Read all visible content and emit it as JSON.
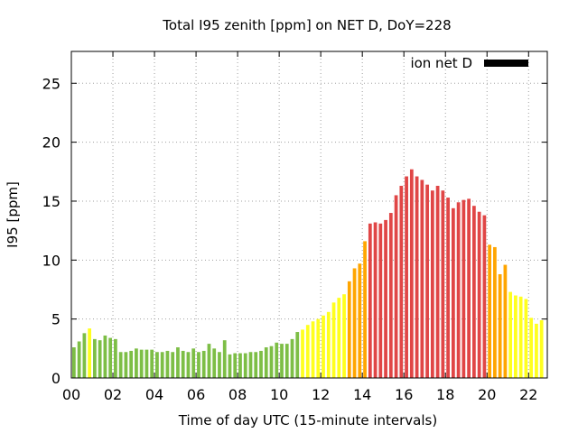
{
  "chart_data": {
    "type": "bar",
    "title": "Total I95 zenith [ppm] on NET D, DoY=228",
    "xlabel": "Time of day UTC (15-minute intervals)",
    "ylabel": "I95 [ppm]",
    "x_tick_labels": [
      "00",
      "02",
      "04",
      "06",
      "08",
      "10",
      "12",
      "14",
      "16",
      "18",
      "20",
      "22"
    ],
    "x_tick_hours": [
      0,
      2,
      4,
      6,
      8,
      10,
      12,
      14,
      16,
      18,
      20,
      22
    ],
    "y_ticks": [
      0,
      5,
      10,
      15,
      20,
      25
    ],
    "xlim_hours": [
      0,
      22.9
    ],
    "ylim": [
      0,
      27.7
    ],
    "grid": true,
    "legend": {
      "label": "ion net D",
      "color": "#000000",
      "placement": "top-right"
    },
    "interval_hours": 0.25,
    "level_colors": {
      "green": "#7dbe46",
      "yellow": "#ffff1e",
      "orange": "#ffa500",
      "red": "#e04646"
    },
    "series": [
      {
        "values": [
          2.6,
          3.1,
          3.8,
          4.2,
          3.3,
          3.2,
          3.6,
          3.4,
          3.3,
          2.2,
          2.2,
          2.3,
          2.5,
          2.4,
          2.4,
          2.4,
          2.2,
          2.2,
          2.3,
          2.2,
          2.6,
          2.3,
          2.2,
          2.5,
          2.2,
          2.3,
          2.9,
          2.5,
          2.2,
          3.2,
          2.0,
          2.1,
          2.1,
          2.1,
          2.2,
          2.2,
          2.3,
          2.6,
          2.7,
          3.0,
          2.9,
          2.9,
          3.3,
          3.9,
          4.1,
          4.5,
          4.8,
          5.0,
          5.3,
          5.6,
          6.4,
          6.8,
          7.1,
          8.2,
          9.3,
          9.7,
          11.6,
          13.1,
          13.2,
          13.1,
          13.4,
          14.0,
          15.5,
          16.3,
          17.1,
          17.7,
          17.1,
          16.8,
          16.4,
          15.9,
          16.3,
          15.9,
          15.3,
          14.4,
          14.9,
          15.1,
          15.2,
          14.6,
          14.1,
          13.8,
          11.3,
          11.1,
          8.8,
          9.6,
          7.3,
          7.0,
          6.9,
          6.7,
          5.1,
          4.6,
          4.9
        ],
        "levels": [
          "green",
          "green",
          "green",
          "yellow",
          "green",
          "green",
          "green",
          "green",
          "green",
          "green",
          "green",
          "green",
          "green",
          "green",
          "green",
          "green",
          "green",
          "green",
          "green",
          "green",
          "green",
          "green",
          "green",
          "green",
          "green",
          "green",
          "green",
          "green",
          "green",
          "green",
          "green",
          "green",
          "green",
          "green",
          "green",
          "green",
          "green",
          "green",
          "green",
          "green",
          "green",
          "green",
          "green",
          "green",
          "yellow",
          "yellow",
          "yellow",
          "yellow",
          "yellow",
          "yellow",
          "yellow",
          "yellow",
          "yellow",
          "orange",
          "orange",
          "orange",
          "orange",
          "red",
          "red",
          "red",
          "red",
          "red",
          "red",
          "red",
          "red",
          "red",
          "red",
          "red",
          "red",
          "red",
          "red",
          "red",
          "red",
          "red",
          "red",
          "red",
          "red",
          "red",
          "red",
          "red",
          "orange",
          "orange",
          "orange",
          "orange",
          "yellow",
          "yellow",
          "yellow",
          "yellow",
          "yellow",
          "yellow",
          "yellow"
        ]
      }
    ]
  }
}
